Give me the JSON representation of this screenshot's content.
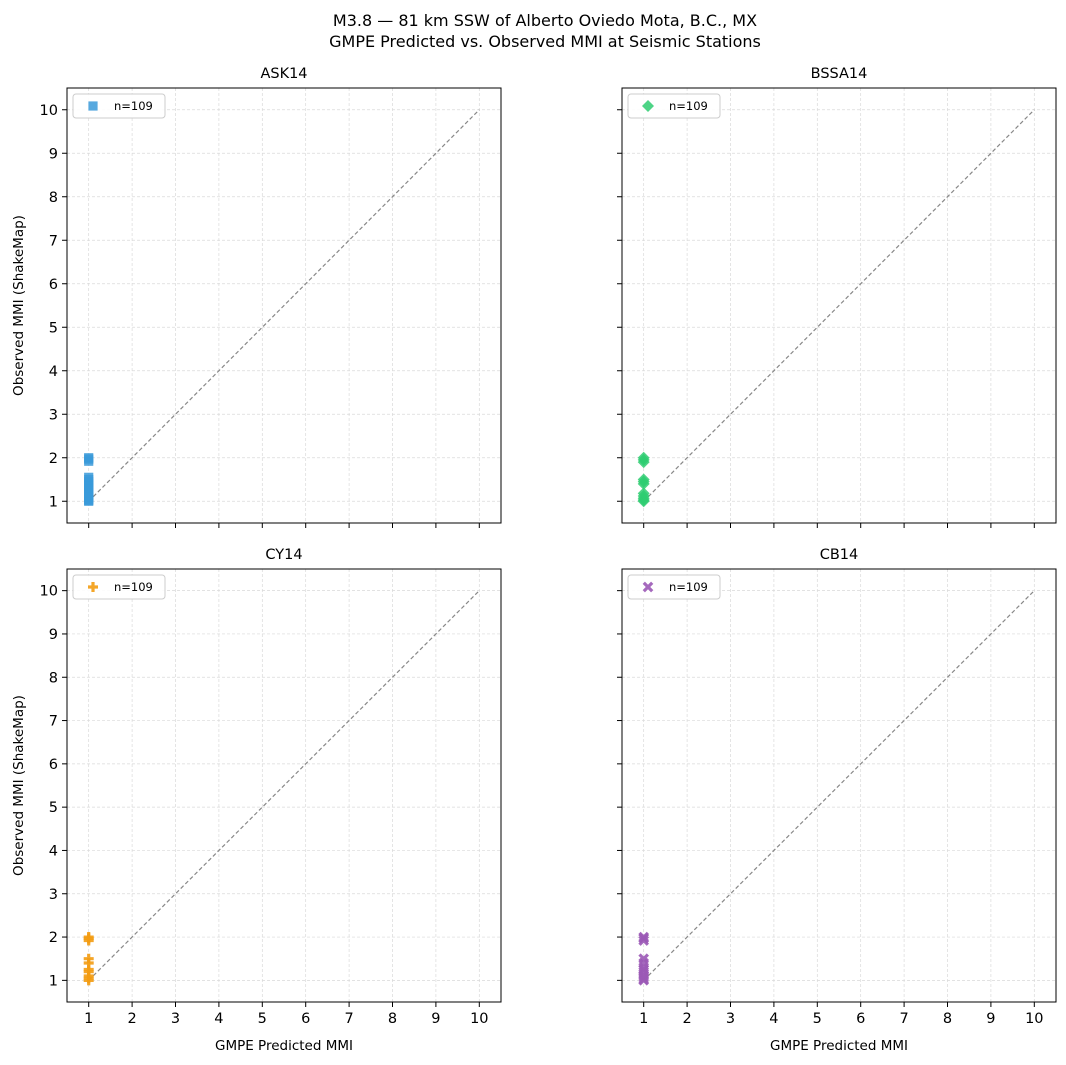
{
  "figure": {
    "title_line1": "M3.8 — 81 km SSW of Alberto Oviedo Mota, B.C., MX",
    "title_line2": "GMPE Predicted vs. Observed MMI at Seismic Stations"
  },
  "chart_data": [
    {
      "type": "scatter",
      "title": "ASK14",
      "xlabel": "",
      "ylabel": "Observed MMI (ShakeMap)",
      "xlim": [
        0.5,
        10.5
      ],
      "ylim": [
        0.5,
        10.5
      ],
      "xticks": [
        1,
        2,
        3,
        4,
        5,
        6,
        7,
        8,
        9,
        10
      ],
      "yticks": [
        1,
        2,
        3,
        4,
        5,
        6,
        7,
        8,
        9,
        10
      ],
      "show_xtick_labels": false,
      "show_ytick_labels": true,
      "grid": true,
      "legend_position": "upper-left",
      "reference_line": {
        "x": [
          1,
          10
        ],
        "y": [
          1,
          10
        ],
        "style": "dashed",
        "color": "#888888"
      },
      "series": [
        {
          "name": "n=109",
          "marker": "square",
          "color": "#3a9ad9",
          "x": [
            1,
            1,
            1,
            1,
            1,
            1,
            1,
            1,
            1,
            1,
            1,
            1,
            1,
            1,
            1,
            1,
            1
          ],
          "y": [
            1.0,
            1.02,
            1.05,
            1.08,
            1.1,
            1.15,
            1.2,
            1.25,
            1.3,
            1.35,
            1.4,
            1.45,
            1.5,
            1.55,
            1.92,
            1.97,
            2.0
          ]
        }
      ]
    },
    {
      "type": "scatter",
      "title": "BSSA14",
      "xlabel": "",
      "ylabel": "",
      "xlim": [
        0.5,
        10.5
      ],
      "ylim": [
        0.5,
        10.5
      ],
      "xticks": [
        1,
        2,
        3,
        4,
        5,
        6,
        7,
        8,
        9,
        10
      ],
      "yticks": [
        1,
        2,
        3,
        4,
        5,
        6,
        7,
        8,
        9,
        10
      ],
      "show_xtick_labels": false,
      "show_ytick_labels": false,
      "grid": true,
      "legend_position": "upper-left",
      "reference_line": {
        "x": [
          1,
          10
        ],
        "y": [
          1,
          10
        ],
        "style": "dashed",
        "color": "#888888"
      },
      "series": [
        {
          "name": "n=109",
          "marker": "diamond",
          "color": "#2ecc71",
          "x": [
            1,
            1,
            1,
            1,
            1,
            1,
            1,
            1,
            1,
            1,
            1
          ],
          "y": [
            1.0,
            1.03,
            1.07,
            1.12,
            1.18,
            1.4,
            1.45,
            1.5,
            1.9,
            1.95,
            2.0
          ]
        }
      ]
    },
    {
      "type": "scatter",
      "title": "CY14",
      "xlabel": "GMPE Predicted MMI",
      "ylabel": "Observed MMI (ShakeMap)",
      "xlim": [
        0.5,
        10.5
      ],
      "ylim": [
        0.5,
        10.5
      ],
      "xticks": [
        1,
        2,
        3,
        4,
        5,
        6,
        7,
        8,
        9,
        10
      ],
      "yticks": [
        1,
        2,
        3,
        4,
        5,
        6,
        7,
        8,
        9,
        10
      ],
      "show_xtick_labels": true,
      "show_ytick_labels": true,
      "grid": true,
      "legend_position": "upper-left",
      "reference_line": {
        "x": [
          1,
          10
        ],
        "y": [
          1,
          10
        ],
        "style": "dashed",
        "color": "#888888"
      },
      "series": [
        {
          "name": "n=109",
          "marker": "plus",
          "color": "#f39c12",
          "x": [
            1,
            1,
            1,
            1,
            1,
            1,
            1,
            1,
            1,
            1
          ],
          "y": [
            1.0,
            1.05,
            1.1,
            1.2,
            1.25,
            1.4,
            1.5,
            1.92,
            1.97,
            2.0
          ]
        }
      ]
    },
    {
      "type": "scatter",
      "title": "CB14",
      "xlabel": "GMPE Predicted MMI",
      "ylabel": "",
      "xlim": [
        0.5,
        10.5
      ],
      "ylim": [
        0.5,
        10.5
      ],
      "xticks": [
        1,
        2,
        3,
        4,
        5,
        6,
        7,
        8,
        9,
        10
      ],
      "yticks": [
        1,
        2,
        3,
        4,
        5,
        6,
        7,
        8,
        9,
        10
      ],
      "show_xtick_labels": true,
      "show_ytick_labels": false,
      "grid": true,
      "legend_position": "upper-left",
      "reference_line": {
        "x": [
          1,
          10
        ],
        "y": [
          1,
          10
        ],
        "style": "dashed",
        "color": "#888888"
      },
      "series": [
        {
          "name": "n=109",
          "marker": "x",
          "color": "#9b59b6",
          "x": [
            1,
            1,
            1,
            1,
            1,
            1,
            1,
            1,
            1,
            1,
            1,
            1
          ],
          "y": [
            1.0,
            1.03,
            1.08,
            1.12,
            1.2,
            1.25,
            1.3,
            1.4,
            1.5,
            1.92,
            1.97,
            2.0
          ]
        }
      ]
    }
  ]
}
